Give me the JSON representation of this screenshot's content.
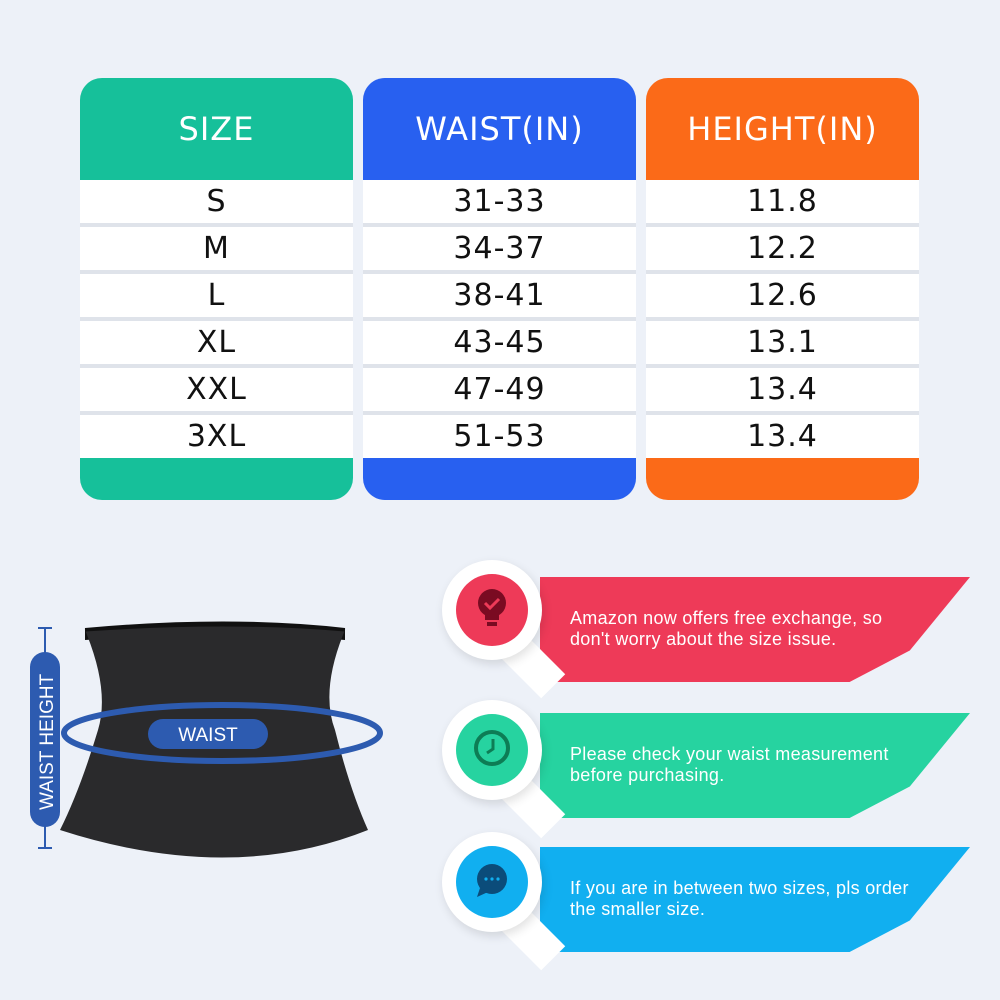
{
  "table": {
    "headers": [
      "SIZE",
      "WAIST(IN)",
      "HEIGHT(IN)"
    ],
    "header_colors": [
      "#16c09a",
      "#2860f0",
      "#fb6a18"
    ],
    "rows": [
      [
        "S",
        "31-33",
        "11.8"
      ],
      [
        "M",
        "34-37",
        "12.2"
      ],
      [
        "L",
        "38-41",
        "12.6"
      ],
      [
        "XL",
        "43-45",
        "13.1"
      ],
      [
        "XXL",
        "47-49",
        "13.4"
      ],
      [
        "3XL",
        "51-53",
        "13.4"
      ]
    ]
  },
  "diagram": {
    "waist_label": "WAIST",
    "height_label": "WAIST HEIGHT",
    "accent": "#2d5bb0"
  },
  "tips": [
    {
      "icon": "lightbulb-check-icon",
      "color": "#ee3a58",
      "line1": "Amazon now offers free exchange, so",
      "line2": "don't worry about the size issue."
    },
    {
      "icon": "clock-icon",
      "color": "#26d3a0",
      "line1": "Please check your waist measurement",
      "line2": "before purchasing."
    },
    {
      "icon": "chat-bubble-icon",
      "color": "#11aff0",
      "line1": "If you are in between two sizes, pls order",
      "line2": "the smaller size."
    }
  ]
}
